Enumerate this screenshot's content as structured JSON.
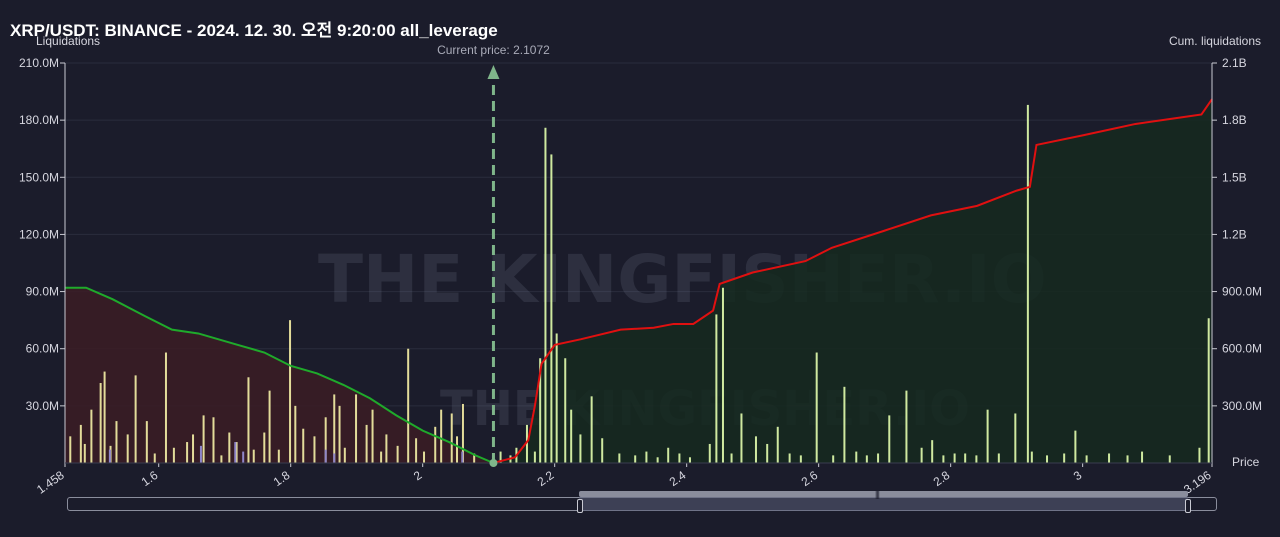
{
  "header": {
    "title": "XRP/USDT: BINANCE - 2024. 12. 30. 오전 9:20:00 all_leverage",
    "left_axis_label": "Liquidations",
    "right_axis_label": "Cum. liquidations"
  },
  "chart_data": {
    "type": "bar",
    "title": "XRP/USDT: BINANCE - 2024. 12. 30. 오전 9:20:00 all_leverage",
    "xlabel": "Price",
    "ylabel": "Liquidations",
    "y2label": "Cum. liquidations",
    "xlim": [
      1.458,
      3.196
    ],
    "ylim": [
      0,
      210000000
    ],
    "y2lim": [
      0,
      2100000000
    ],
    "x_ticks": [
      "1.458",
      "1.6",
      "1.8",
      "2",
      "2.2",
      "2.4",
      "2.6",
      "2.8",
      "3",
      "3.196"
    ],
    "y_ticks": [
      "30.0M",
      "60.0M",
      "90.0M",
      "120.0M",
      "150.0M",
      "180.0M",
      "210.0M"
    ],
    "y2_ticks": [
      "300.0M",
      "600.0M",
      "900.0M",
      "1.2B",
      "1.5B",
      "1.8B",
      "2.1B"
    ],
    "current_price": 2.1072,
    "current_price_label": "Current price: 2.1072",
    "watermark": "THE KINGFISHER.IO",
    "grid": true,
    "colors": {
      "short_bar": "#cfe9a0",
      "long_bar": "#e3dc9a",
      "other_bar": "#8f86c9",
      "long_cum_line": "#1faa2b",
      "short_cum_line": "#e01010",
      "long_fill": "#3b1c25",
      "short_fill": "#15291f",
      "current_price": "#7fb58a"
    },
    "series": [
      {
        "name": "",
        "role": "long liquidations",
        "x": [
          1.466,
          1.482,
          1.488,
          1.498,
          1.512,
          1.518,
          1.527,
          1.536,
          1.553,
          1.565,
          1.582,
          1.594,
          1.611,
          1.623,
          1.643,
          1.652,
          1.668,
          1.683,
          1.695,
          1.707,
          1.718,
          1.736,
          1.744,
          1.76,
          1.768,
          1.782,
          1.799,
          1.807,
          1.819,
          1.836,
          1.853,
          1.866,
          1.874,
          1.882,
          1.899,
          1.915,
          1.924,
          1.937,
          1.945,
          1.962,
          1.978,
          1.99,
          2.002,
          2.019,
          2.028,
          2.044,
          2.052,
          2.061,
          2.078
        ],
        "values": [
          14000000,
          20000000,
          10000000,
          28000000,
          42000000,
          48000000,
          9000000,
          22000000,
          15000000,
          46000000,
          22000000,
          5000000,
          58000000,
          8000000,
          11000000,
          15000000,
          25000000,
          24000000,
          4000000,
          16000000,
          11000000,
          45000000,
          7000000,
          16000000,
          38000000,
          7000000,
          75000000,
          30000000,
          18000000,
          14000000,
          24000000,
          36000000,
          30000000,
          8000000,
          36000000,
          20000000,
          28000000,
          6000000,
          15000000,
          9000000,
          60000000,
          13000000,
          6000000,
          19000000,
          28000000,
          26000000,
          14000000,
          31000000,
          5000000
        ]
      },
      {
        "name": "",
        "role": "short liquidations",
        "x": [
          2.118,
          2.133,
          2.142,
          2.158,
          2.17,
          2.178,
          2.186,
          2.195,
          2.203,
          2.216,
          2.225,
          2.239,
          2.256,
          2.272,
          2.298,
          2.322,
          2.339,
          2.356,
          2.372,
          2.389,
          2.405,
          2.435,
          2.445,
          2.455,
          2.468,
          2.483,
          2.505,
          2.522,
          2.538,
          2.556,
          2.573,
          2.597,
          2.622,
          2.639,
          2.657,
          2.673,
          2.69,
          2.707,
          2.733,
          2.756,
          2.772,
          2.789,
          2.806,
          2.822,
          2.839,
          2.856,
          2.873,
          2.898,
          2.917,
          2.923,
          2.946,
          2.972,
          2.989,
          3.006,
          3.04,
          3.068,
          3.09,
          3.132,
          3.177,
          3.191
        ],
        "values": [
          6000000,
          4000000,
          8000000,
          20000000,
          6000000,
          55000000,
          176000000,
          162000000,
          68000000,
          55000000,
          28000000,
          15000000,
          35000000,
          13000000,
          5000000,
          4000000,
          6000000,
          3000000,
          8000000,
          5000000,
          3000000,
          10000000,
          78000000,
          92000000,
          5000000,
          26000000,
          14000000,
          10000000,
          19000000,
          5000000,
          4000000,
          58000000,
          4000000,
          40000000,
          6000000,
          4000000,
          5000000,
          25000000,
          38000000,
          8000000,
          12000000,
          4000000,
          5000000,
          5000000,
          4000000,
          28000000,
          5000000,
          26000000,
          188000000,
          6000000,
          4000000,
          5000000,
          17000000,
          4000000,
          5000000,
          4000000,
          6000000,
          4000000,
          8000000,
          76000000
        ]
      },
      {
        "name": "",
        "role": "other",
        "x": [
          1.526,
          1.664,
          1.716,
          1.728,
          1.853,
          1.866,
          2.06
        ],
        "values": [
          7000000,
          9000000,
          11000000,
          6000000,
          7000000,
          5000000,
          6000000
        ]
      },
      {
        "name": "",
        "role": "cumulative long liquidations",
        "x": [
          1.458,
          1.49,
          1.53,
          1.58,
          1.62,
          1.66,
          1.72,
          1.76,
          1.8,
          1.84,
          1.88,
          1.92,
          1.96,
          2.0,
          2.04,
          2.08,
          2.1072
        ],
        "values": [
          920000000,
          920000000,
          860000000,
          770000000,
          700000000,
          680000000,
          620000000,
          580000000,
          510000000,
          470000000,
          410000000,
          340000000,
          250000000,
          170000000,
          110000000,
          40000000,
          0
        ]
      },
      {
        "name": "",
        "role": "cumulative short liquidations",
        "x": [
          2.1072,
          2.14,
          2.16,
          2.17,
          2.18,
          2.2,
          2.24,
          2.3,
          2.35,
          2.38,
          2.41,
          2.44,
          2.45,
          2.5,
          2.58,
          2.62,
          2.7,
          2.77,
          2.84,
          2.9,
          2.92,
          2.93,
          3.0,
          3.08,
          3.16,
          3.18,
          3.196
        ],
        "values": [
          0,
          30000000,
          120000000,
          300000000,
          520000000,
          620000000,
          650000000,
          700000000,
          710000000,
          730000000,
          730000000,
          800000000,
          940000000,
          1000000000,
          1060000000,
          1130000000,
          1220000000,
          1300000000,
          1350000000,
          1430000000,
          1450000000,
          1670000000,
          1720000000,
          1780000000,
          1820000000,
          1830000000,
          1910000000
        ]
      }
    ]
  }
}
